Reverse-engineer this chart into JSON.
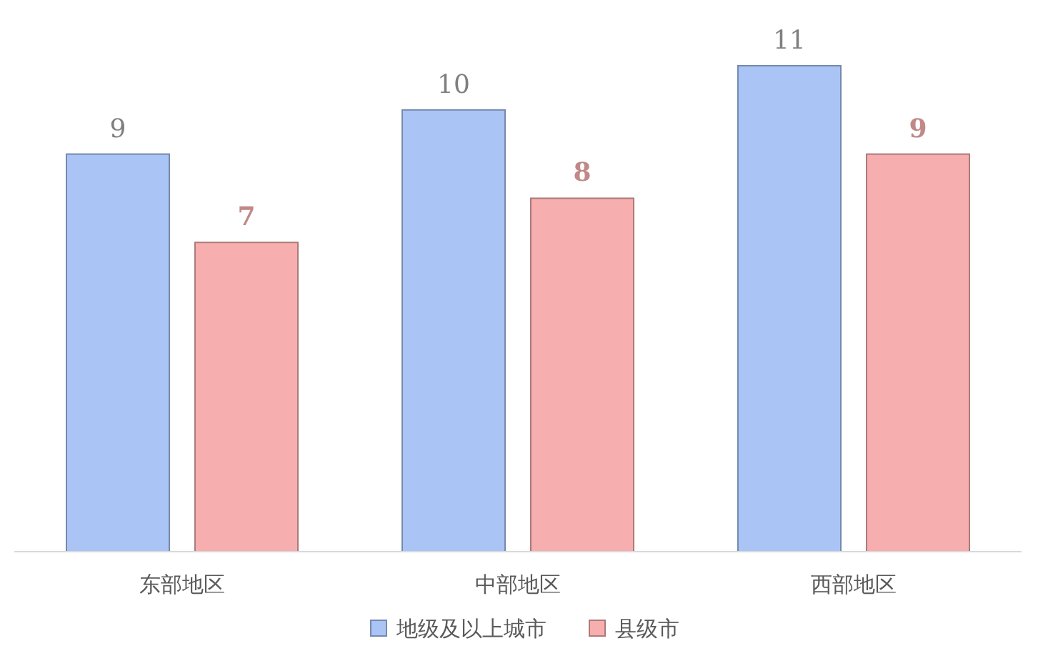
{
  "chart_data": {
    "type": "bar",
    "categories": [
      "东部地区",
      "中部地区",
      "西部地区"
    ],
    "series": [
      {
        "name": "地级及以上城市",
        "color": "#a9c4f5",
        "values": [
          9,
          10,
          11
        ]
      },
      {
        "name": "县级市",
        "color": "#f7aeae",
        "values": [
          7,
          8,
          9
        ]
      }
    ],
    "data_labels": true,
    "legend": "bottom"
  }
}
